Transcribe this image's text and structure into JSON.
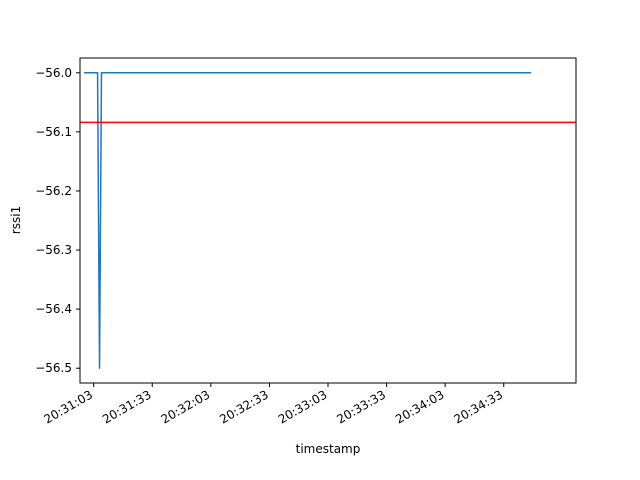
{
  "chart_data": {
    "type": "line",
    "title": "",
    "xlabel": "timestamp",
    "ylabel": "rssi1",
    "ylim": [
      -56.525,
      -55.975
    ],
    "xlim": [
      "20:30:56",
      "20:35:10"
    ],
    "yticks": [
      -56.0,
      -56.1,
      -56.2,
      -56.3,
      -56.4,
      -56.5
    ],
    "ytick_labels": [
      "−56.0",
      "−56.1",
      "−56.2",
      "−56.3",
      "−56.4",
      "−56.5"
    ],
    "xticks": [
      "20:31:03",
      "20:31:33",
      "20:32:03",
      "20:32:33",
      "20:33:03",
      "20:33:33",
      "20:34:03",
      "20:34:33"
    ],
    "grid": false,
    "series": [
      {
        "color": "#1f77b4",
        "points": [
          {
            "x": "20:30:58",
            "y": -56.0
          },
          {
            "x": "20:31:05",
            "y": -56.0
          },
          {
            "x": "20:31:06",
            "y": -56.5
          },
          {
            "x": "20:31:07",
            "y": -56.0
          },
          {
            "x": "20:34:47",
            "y": -56.0
          }
        ]
      }
    ],
    "reference_lines": [
      {
        "orientation": "horizontal",
        "y": -56.084,
        "color": "#ff0000"
      }
    ]
  }
}
